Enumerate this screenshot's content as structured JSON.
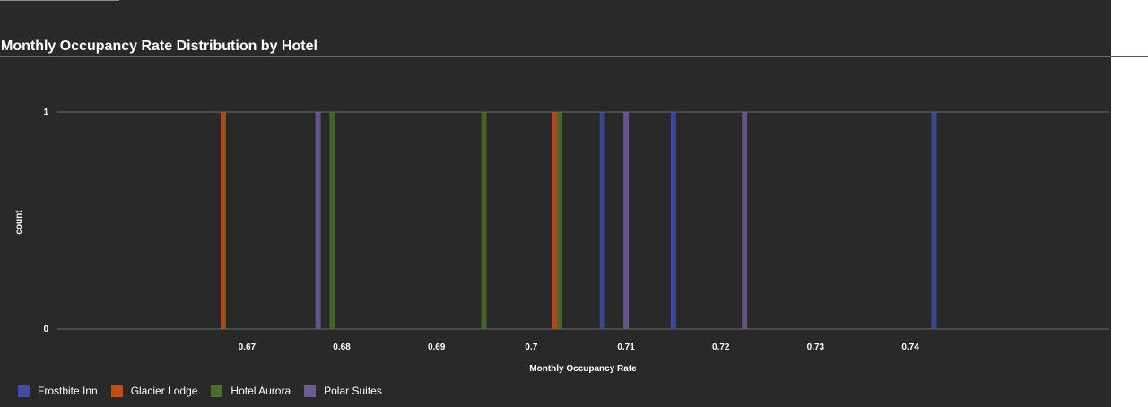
{
  "chart_data": {
    "type": "bar",
    "title": "Monthly Occupancy Rate Distribution by Hotel",
    "xlabel": "Monthly Occupancy Rate",
    "ylabel": "count",
    "xlim": [
      0.65,
      0.761
    ],
    "ylim": [
      0,
      1
    ],
    "x_ticks": [
      "0.67",
      "0.68",
      "0.69",
      "0.7",
      "0.71",
      "0.72",
      "0.73",
      "0.74"
    ],
    "y_ticks": [
      "0",
      "1"
    ],
    "bin_width": 0.0005,
    "grid": true,
    "legend_position": "bottom-left",
    "series": [
      {
        "name": "Frostbite Inn",
        "color": "#3f4ea0",
        "bins": [
          0.7075,
          0.715,
          0.7425
        ]
      },
      {
        "name": "Glacier Lodge",
        "color": "#b8511f",
        "bins": [
          0.6675,
          0.7025
        ]
      },
      {
        "name": "Hotel Aurora",
        "color": "#4a7028",
        "bins": [
          0.679,
          0.695,
          0.703
        ]
      },
      {
        "name": "Polar Suites",
        "color": "#6e5a96",
        "bins": [
          0.6775,
          0.71,
          0.7225
        ]
      }
    ]
  }
}
